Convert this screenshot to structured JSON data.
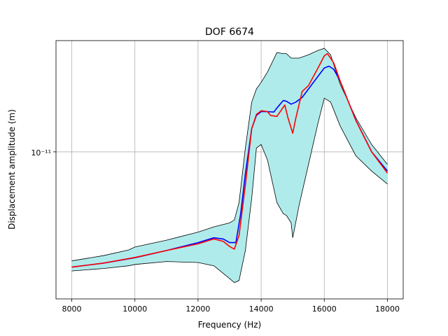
{
  "chart_data": {
    "type": "line",
    "title": "DOF 6674",
    "xlabel": "Frequency (Hz)",
    "ylabel": "Displacement amplitude (m)",
    "xlim": [
      7500,
      18500
    ],
    "ylim": [
      1.5e-12,
      4.2e-11
    ],
    "yscale": "log",
    "grid": true,
    "x_ticks": [
      8000,
      10000,
      12000,
      14000,
      16000,
      18000
    ],
    "x_tick_labels": [
      "8000",
      "10000",
      "12000",
      "14000",
      "16000",
      "18000"
    ],
    "y_ticks": [
      1e-11
    ],
    "y_tick_labels": [
      "10⁻¹¹"
    ],
    "colors": {
      "band_fill": "#b0ebeb",
      "band_edge": "#000000",
      "blue": "#0000ff",
      "red": "#ff0000",
      "grid": "#b0b0b0"
    },
    "band": {
      "x": [
        8000,
        9000,
        9800,
        10000,
        11000,
        12000,
        12500,
        13000,
        13150,
        13300,
        13500,
        13700,
        13850,
        14000,
        14200,
        14500,
        14700,
        14800,
        14950,
        15000,
        15200,
        15500,
        15800,
        16000,
        16200,
        16500,
        17000,
        17500,
        18000
      ],
      "upper": [
        2.45e-12,
        2.62e-12,
        2.82e-12,
        2.93e-12,
        3.2e-12,
        3.55e-12,
        3.8e-12,
        4e-12,
        4.15e-12,
        5.2e-12,
        1.05e-11,
        1.9e-11,
        2.25e-11,
        2.45e-11,
        2.8e-11,
        3.6e-11,
        3.55e-11,
        3.55e-11,
        3.35e-11,
        3.35e-11,
        3.35e-11,
        3.5e-11,
        3.7e-11,
        3.8e-11,
        3.5e-11,
        2.4e-11,
        1.55e-11,
        1.1e-11,
        8.5e-12
      ],
      "lower": [
        2.15e-12,
        2.22e-12,
        2.3e-12,
        2.34e-12,
        2.43e-12,
        2.4e-12,
        2.3e-12,
        1.95e-12,
        1.85e-12,
        1.9e-12,
        2.8e-12,
        5.5e-12,
        1.05e-11,
        1.1e-11,
        9e-12,
        5.2e-12,
        4.5e-12,
        4.4e-12,
        4e-12,
        3.3e-12,
        5e-12,
        8.5e-12,
        1.45e-11,
        2e-11,
        1.9e-11,
        1.4e-11,
        9.5e-12,
        7.8e-12,
        6.6e-12
      ]
    },
    "series": [
      {
        "color": "blue",
        "x": [
          8000,
          9000,
          10000,
          11000,
          12000,
          12500,
          12800,
          13000,
          13200,
          13350,
          13500,
          13700,
          13850,
          14000,
          14200,
          14400,
          14500,
          14700,
          14800,
          14950,
          15100,
          15300,
          15500,
          15800,
          16000,
          16150,
          16300,
          16500,
          17000,
          17500,
          18000
        ],
        "y": [
          2.26e-12,
          2.38e-12,
          2.55e-12,
          2.8e-12,
          3.1e-12,
          3.3e-12,
          3.25e-12,
          3.1e-12,
          3.1e-12,
          4.5e-12,
          7.5e-12,
          1.35e-11,
          1.6e-11,
          1.68e-11,
          1.68e-11,
          1.67e-11,
          1.76e-11,
          1.94e-11,
          1.92e-11,
          1.85e-11,
          1.9e-11,
          2.02e-11,
          2.25e-11,
          2.65e-11,
          2.95e-11,
          3.02e-11,
          2.9e-11,
          2.5e-11,
          1.5e-11,
          1e-11,
          7.8e-12
        ]
      },
      {
        "color": "red",
        "x": [
          8000,
          9000,
          10000,
          11000,
          12000,
          12500,
          12800,
          13000,
          13150,
          13300,
          13500,
          13700,
          13850,
          14000,
          14200,
          14300,
          14500,
          14750,
          14850,
          15000,
          15100,
          15300,
          15500,
          15800,
          16000,
          16100,
          16300,
          16500,
          17000,
          17500,
          18000
        ],
        "y": [
          2.26e-12,
          2.38e-12,
          2.56e-12,
          2.8e-12,
          3.05e-12,
          3.25e-12,
          3.15e-12,
          2.95e-12,
          2.85e-12,
          3.4e-12,
          6.5e-12,
          1.35e-11,
          1.62e-11,
          1.7e-11,
          1.68e-11,
          1.6e-11,
          1.58e-11,
          1.83e-11,
          1.55e-11,
          1.27e-11,
          1.55e-11,
          2.18e-11,
          2.35e-11,
          2.95e-11,
          3.45e-11,
          3.55e-11,
          3.15e-11,
          2.5e-11,
          1.5e-11,
          1e-11,
          7.6e-12
        ]
      }
    ]
  }
}
